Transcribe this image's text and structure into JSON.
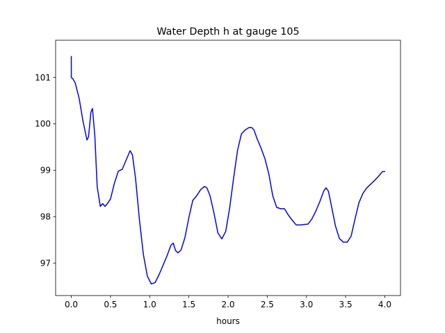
{
  "chart_data": {
    "type": "line",
    "title": "Water Depth h at gauge 105",
    "xlabel": "hours",
    "ylabel": "",
    "xlim": [
      -0.2,
      4.2
    ],
    "ylim": [
      96.3,
      101.8
    ],
    "xticks": [
      0.0,
      0.5,
      1.0,
      1.5,
      2.0,
      2.5,
      3.0,
      3.5,
      4.0
    ],
    "xtick_labels": [
      "0.0",
      "0.5",
      "1.0",
      "1.5",
      "2.0",
      "2.5",
      "3.0",
      "3.5",
      "4.0"
    ],
    "yticks": [
      97,
      98,
      99,
      100,
      101
    ],
    "ytick_labels": [
      "97",
      "98",
      "99",
      "100",
      "101"
    ],
    "grid": false,
    "series": [
      {
        "color": "#0000ff",
        "x": [
          0.0,
          0.0,
          0.02,
          0.05,
          0.1,
          0.15,
          0.2,
          0.22,
          0.25,
          0.27,
          0.3,
          0.33,
          0.37,
          0.4,
          0.43,
          0.46,
          0.5,
          0.55,
          0.6,
          0.65,
          0.7,
          0.75,
          0.78,
          0.82,
          0.87,
          0.92,
          0.97,
          1.02,
          1.07,
          1.12,
          1.17,
          1.22,
          1.27,
          1.3,
          1.33,
          1.36,
          1.4,
          1.45,
          1.5,
          1.55,
          1.6,
          1.65,
          1.7,
          1.73,
          1.77,
          1.82,
          1.87,
          1.92,
          1.97,
          2.02,
          2.07,
          2.12,
          2.17,
          2.22,
          2.27,
          2.3,
          2.33,
          2.37,
          2.42,
          2.47,
          2.52,
          2.57,
          2.62,
          2.67,
          2.72,
          2.77,
          2.82,
          2.87,
          2.92,
          2.97,
          3.02,
          3.07,
          3.12,
          3.17,
          3.22,
          3.25,
          3.28,
          3.32,
          3.37,
          3.42,
          3.47,
          3.52,
          3.57,
          3.62,
          3.67,
          3.72,
          3.77,
          3.82,
          3.87,
          3.92,
          3.97,
          4.0
        ],
        "y": [
          101.45,
          101.0,
          100.97,
          100.88,
          100.55,
          100.05,
          99.65,
          99.72,
          100.25,
          100.33,
          99.75,
          98.65,
          98.22,
          98.28,
          98.22,
          98.28,
          98.38,
          98.72,
          98.98,
          99.02,
          99.22,
          99.42,
          99.33,
          98.82,
          97.92,
          97.18,
          96.72,
          96.55,
          96.58,
          96.75,
          96.95,
          97.15,
          97.38,
          97.43,
          97.27,
          97.22,
          97.28,
          97.55,
          97.98,
          98.35,
          98.45,
          98.58,
          98.65,
          98.62,
          98.45,
          98.08,
          97.65,
          97.52,
          97.68,
          98.18,
          98.82,
          99.42,
          99.78,
          99.87,
          99.92,
          99.92,
          99.87,
          99.68,
          99.48,
          99.25,
          98.92,
          98.45,
          98.2,
          98.17,
          98.17,
          98.03,
          97.92,
          97.82,
          97.82,
          97.83,
          97.84,
          97.95,
          98.12,
          98.32,
          98.55,
          98.62,
          98.55,
          98.22,
          97.8,
          97.53,
          97.45,
          97.45,
          97.58,
          97.95,
          98.3,
          98.5,
          98.62,
          98.7,
          98.78,
          98.87,
          98.97,
          98.97
        ]
      }
    ]
  }
}
